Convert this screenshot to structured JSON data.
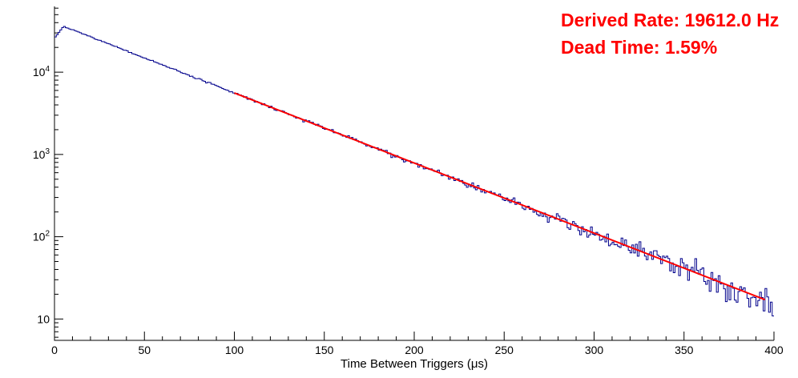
{
  "chart_data": {
    "type": "histogram",
    "title": "",
    "xlabel": "Time Between Triggers (μs)",
    "ylabel": "",
    "x_axis": {
      "min": 0,
      "max": 400,
      "major_ticks": [
        0,
        50,
        100,
        150,
        200,
        250,
        300,
        350,
        400
      ],
      "minor_tick_step": 10
    },
    "y_axis": {
      "scale": "log",
      "min": 5.5,
      "max": 63000,
      "major_ticks": [
        {
          "value": 10,
          "label_base": "10",
          "label_exp": ""
        },
        {
          "value": 100,
          "label_base": "10",
          "label_exp": "2"
        },
        {
          "value": 1000,
          "label_base": "10",
          "label_exp": "3"
        },
        {
          "value": 10000,
          "label_base": "10",
          "label_exp": "4"
        }
      ]
    },
    "histogram": {
      "color": "#00008b",
      "bin_width_us": 1,
      "points": [
        [
          0,
          26000
        ],
        [
          5,
          36000
        ],
        [
          10,
          32700
        ],
        [
          20,
          26900
        ],
        [
          30,
          22100
        ],
        [
          40,
          18100
        ],
        [
          50,
          14900
        ],
        [
          60,
          12250
        ],
        [
          70,
          10070
        ],
        [
          80,
          8270
        ],
        [
          90,
          6800
        ],
        [
          100,
          5590
        ],
        [
          110,
          4590
        ],
        [
          120,
          3780
        ],
        [
          130,
          3100
        ],
        [
          140,
          2550
        ],
        [
          150,
          2100
        ],
        [
          160,
          1720
        ],
        [
          170,
          1420
        ],
        [
          180,
          1160
        ],
        [
          190,
          956
        ],
        [
          200,
          786
        ],
        [
          210,
          646
        ],
        [
          220,
          531
        ],
        [
          230,
          437
        ],
        [
          240,
          359
        ],
        [
          250,
          295
        ],
        [
          260,
          242
        ],
        [
          270,
          199
        ],
        [
          280,
          164
        ],
        [
          290,
          135
        ],
        [
          300,
          111
        ],
        [
          310,
          91
        ],
        [
          320,
          75
        ],
        [
          330,
          62
        ],
        [
          340,
          51
        ],
        [
          350,
          42
        ],
        [
          360,
          34
        ],
        [
          370,
          28
        ],
        [
          380,
          23
        ],
        [
          390,
          19
        ],
        [
          400,
          15.6
        ]
      ]
    },
    "fit": {
      "type": "exponential",
      "color": "#ff0000",
      "line_width": 2,
      "x_range": [
        100,
        395
      ],
      "value_at_range_start": 5590,
      "decay_constant_us": 51.0
    },
    "noise": {
      "poisson": true,
      "seed": 7
    },
    "annotations": [
      {
        "id": "derived-rate",
        "text": "Derived Rate: 19612.0 Hz",
        "color": "#ff0000"
      },
      {
        "id": "dead-time",
        "text": "Dead Time: 1.59%",
        "color": "#ff0000"
      }
    ]
  }
}
